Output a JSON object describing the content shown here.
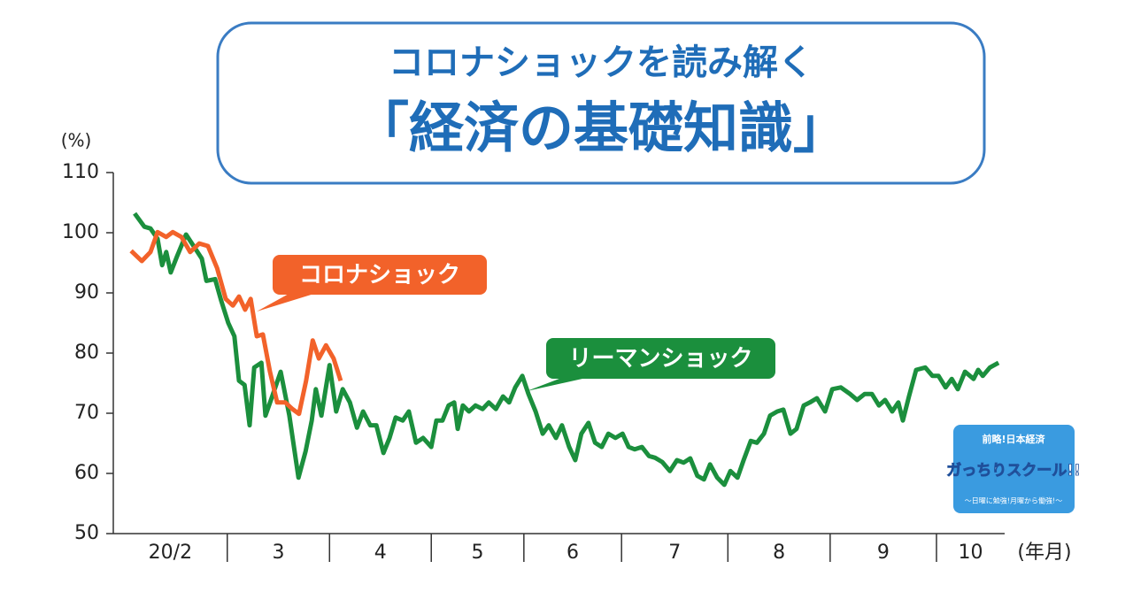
{
  "chart_data": {
    "type": "line",
    "title": "コロナショックを読み解く",
    "subtitle": "「経済の基礎知識」",
    "y_label": "(%)",
    "x_label": "(年月)",
    "categories": [
      "20/2",
      "3",
      "4",
      "5",
      "6",
      "7",
      "8",
      "9",
      "10"
    ],
    "xlim": [
      0,
      175.2
    ],
    "xticks": [
      22.4,
      42.5,
      62.5,
      80.7,
      99.9,
      120.8,
      140.9,
      161.8
    ],
    "ylim": [
      50,
      110
    ],
    "yticks": [
      50,
      60,
      70,
      80,
      90,
      100,
      110
    ],
    "series": [
      {
        "name": "リーマンショック",
        "color": "#1b8f3d",
        "x": [
          4.2,
          6.1,
          7.3,
          8.7,
          9.6,
          10.4,
          11.3,
          12.5,
          14.3,
          16.0,
          17.4,
          18.3,
          20.0,
          21.2,
          22.6,
          23.8,
          24.7,
          25.8,
          26.8,
          27.7,
          29.1,
          29.9,
          31.1,
          32.9,
          34.6,
          36.4,
          37.8,
          39.0,
          39.8,
          40.9,
          42.5,
          43.8,
          45.1,
          46.5,
          47.9,
          49.1,
          50.5,
          51.7,
          53.1,
          54.3,
          55.5,
          56.9,
          58.1,
          59.5,
          60.9,
          62.5,
          63.5,
          64.7,
          65.9,
          67.0,
          67.7,
          68.7,
          69.9,
          71.2,
          72.6,
          73.8,
          75.2,
          76.6,
          77.8,
          79.0,
          80.4,
          81.6,
          83.0,
          84.4,
          85.6,
          87.0,
          88.2,
          89.6,
          90.8,
          92.0,
          93.4,
          94.7,
          96.0,
          97.3,
          98.7,
          100.1,
          101.3,
          102.5,
          103.9,
          105.3,
          106.5,
          107.9,
          109.4,
          110.8,
          112.1,
          113.4,
          114.8,
          116.1,
          117.3,
          118.7,
          120.1,
          121.3,
          122.7,
          123.9,
          125.3,
          126.5,
          127.9,
          129.1,
          130.5,
          131.7,
          133.1,
          134.3,
          135.7,
          136.9,
          138.3,
          139.9,
          141.3,
          143.0,
          144.8,
          146.2,
          147.7,
          149.1,
          150.5,
          151.7,
          153.1,
          154.3,
          155.2,
          156.4,
          157.8,
          159.6,
          161.0,
          162.2,
          163.6,
          164.8,
          166.0,
          167.4,
          169.1,
          170.0,
          170.9,
          172.3,
          174.0
        ],
        "values": [
          103.2,
          101,
          100.7,
          99,
          94.6,
          96.8,
          93.4,
          96,
          99.7,
          97.5,
          95.7,
          92,
          92.3,
          88.7,
          85,
          82.8,
          75.4,
          74.7,
          68,
          77.6,
          78.4,
          69.6,
          72.5,
          76.9,
          69.6,
          59.3,
          63.7,
          68.8,
          74,
          69.6,
          78,
          70.3,
          74,
          71.8,
          67.6,
          70.3,
          68,
          68,
          63.4,
          65.9,
          69.3,
          68.8,
          70.3,
          65.1,
          65.9,
          64.4,
          68.8,
          68.8,
          71.3,
          71.8,
          67.4,
          71.3,
          70.3,
          71.3,
          70.7,
          71.8,
          70.7,
          72.8,
          71.8,
          74.3,
          76.2,
          73.2,
          70.3,
          66.6,
          68,
          65.9,
          68,
          64.4,
          62.2,
          66.6,
          68.4,
          65.1,
          64.4,
          66.6,
          65.9,
          66.6,
          64.4,
          64,
          64.4,
          62.9,
          62.6,
          61.9,
          60.4,
          62.2,
          61.8,
          62.5,
          59.6,
          59,
          61.5,
          59.3,
          58.1,
          60.4,
          59.3,
          62.2,
          65.4,
          65.1,
          66.6,
          69.6,
          70.3,
          70.6,
          66.6,
          67.4,
          71.3,
          71.8,
          72.5,
          70.3,
          74,
          74.3,
          73.2,
          72.2,
          73.2,
          73.2,
          71.3,
          72.2,
          70.3,
          71.8,
          68.8,
          72.8,
          77.2,
          77.6,
          76.2,
          76.2,
          74.3,
          75.7,
          74,
          76.9,
          75.7,
          77.2,
          76.2,
          77.6,
          78.4
        ]
      },
      {
        "name": "コロナショック",
        "color": "#f2622a",
        "x": [
          3.5,
          5.6,
          7.3,
          8.7,
          10.4,
          11.7,
          13.4,
          15.1,
          16.9,
          18.6,
          20.4,
          22.1,
          23.5,
          24.7,
          25.9,
          27.0,
          28.2,
          29.4,
          30.8,
          32.2,
          33.8,
          35.2,
          36.5,
          37.9,
          39.2,
          40.4,
          41.8,
          43.3,
          44.7
        ],
        "values": [
          97,
          95.3,
          96.8,
          100.1,
          99.3,
          100.1,
          99.3,
          96.8,
          98.2,
          97.8,
          94.1,
          89,
          87.9,
          89.4,
          87.2,
          89,
          82.8,
          83.1,
          76.9,
          71.8,
          71.8,
          70.7,
          69.9,
          75.4,
          82.1,
          79.1,
          81.3,
          79.1,
          75.4
        ]
      }
    ],
    "logo": {
      "top": "前略!日本経済",
      "main": "ガっちりスクール!!",
      "bottom": "〜日曜に勉強!月曜から働強!〜"
    }
  }
}
